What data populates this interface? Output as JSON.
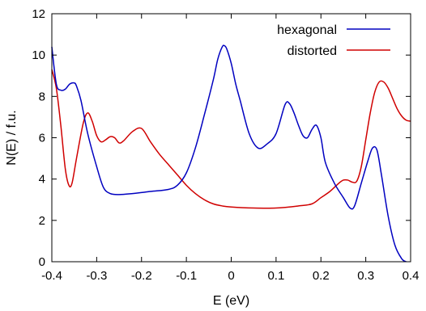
{
  "chart_data": {
    "type": "line",
    "title": "",
    "xlabel": "E (eV)",
    "ylabel": "N(E) / f.u.",
    "xlim": [
      -0.4,
      0.4
    ],
    "ylim": [
      0,
      12
    ],
    "xticks": [
      -0.4,
      -0.3,
      -0.2,
      -0.1,
      0,
      0.1,
      0.2,
      0.3,
      0.4
    ],
    "xtick_labels": [
      "-0.4",
      "-0.3",
      "-0.2",
      "-0.1",
      "0",
      "0.1",
      "0.2",
      "0.3",
      "0.4"
    ],
    "yticks": [
      0,
      2,
      4,
      6,
      8,
      10,
      12
    ],
    "ytick_labels": [
      "0",
      "2",
      "4",
      "6",
      "8",
      "10",
      "12"
    ],
    "grid": false,
    "legend_position": "top-right",
    "series": [
      {
        "name": "hexagonal",
        "color": "#0000c0",
        "x": [
          -0.4,
          -0.39,
          -0.38,
          -0.37,
          -0.36,
          -0.35,
          -0.345,
          -0.335,
          -0.32,
          -0.3,
          -0.285,
          -0.27,
          -0.25,
          -0.22,
          -0.18,
          -0.14,
          -0.12,
          -0.1,
          -0.08,
          -0.06,
          -0.04,
          -0.03,
          -0.02,
          -0.015,
          -0.01,
          0,
          0.01,
          0.02,
          0.04,
          0.06,
          0.08,
          0.1,
          0.12,
          0.13,
          0.14,
          0.15,
          0.16,
          0.17,
          0.18,
          0.19,
          0.2,
          0.21,
          0.23,
          0.25,
          0.265,
          0.275,
          0.29,
          0.305,
          0.315,
          0.325,
          0.335,
          0.35,
          0.365,
          0.38,
          0.39
        ],
        "y": [
          10.4,
          8.6,
          8.3,
          8.35,
          8.6,
          8.65,
          8.5,
          7.8,
          6.2,
          4.6,
          3.6,
          3.3,
          3.25,
          3.3,
          3.4,
          3.5,
          3.7,
          4.3,
          5.5,
          7.1,
          8.8,
          9.8,
          10.4,
          10.45,
          10.3,
          9.6,
          8.6,
          7.8,
          6.2,
          5.5,
          5.7,
          6.2,
          7.6,
          7.65,
          7.2,
          6.6,
          6.1,
          6.0,
          6.4,
          6.6,
          6.0,
          4.8,
          3.8,
          3.1,
          2.6,
          2.7,
          3.8,
          4.9,
          5.5,
          5.4,
          4.2,
          2.2,
          0.8,
          0.15,
          0.0
        ]
      },
      {
        "name": "distorted",
        "color": "#d00000",
        "x": [
          -0.4,
          -0.39,
          -0.38,
          -0.37,
          -0.362,
          -0.355,
          -0.345,
          -0.33,
          -0.32,
          -0.31,
          -0.3,
          -0.29,
          -0.28,
          -0.27,
          -0.26,
          -0.25,
          -0.24,
          -0.22,
          -0.2,
          -0.18,
          -0.16,
          -0.14,
          -0.12,
          -0.1,
          -0.08,
          -0.06,
          -0.04,
          -0.02,
          0,
          0.05,
          0.1,
          0.15,
          0.18,
          0.2,
          0.22,
          0.24,
          0.25,
          0.26,
          0.27,
          0.28,
          0.29,
          0.3,
          0.31,
          0.32,
          0.33,
          0.34,
          0.35,
          0.36,
          0.37,
          0.38,
          0.39,
          0.4
        ],
        "y": [
          9.3,
          8.4,
          6.6,
          4.5,
          3.7,
          3.8,
          5.0,
          6.7,
          7.2,
          6.8,
          6.1,
          5.8,
          5.9,
          6.05,
          6.0,
          5.75,
          5.85,
          6.3,
          6.45,
          5.8,
          5.2,
          4.7,
          4.2,
          3.7,
          3.3,
          3.0,
          2.8,
          2.7,
          2.65,
          2.6,
          2.6,
          2.7,
          2.8,
          3.1,
          3.4,
          3.8,
          3.95,
          3.95,
          3.85,
          3.9,
          4.6,
          5.9,
          7.2,
          8.2,
          8.7,
          8.7,
          8.4,
          7.9,
          7.4,
          7.05,
          6.85,
          6.8
        ]
      }
    ]
  }
}
